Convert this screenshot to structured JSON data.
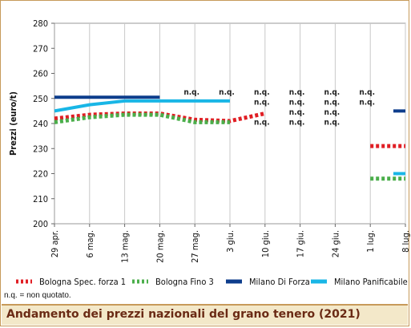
{
  "footer": {
    "title": "Andamento dei prezzi nazionali del grano tenero (2021)"
  },
  "note": "n.q. = non quotato.",
  "legend": [
    {
      "label": "Bologna Spec. forza 1",
      "color": "#e01e24",
      "style": "dotted"
    },
    {
      "label": "Bologna Fino 3",
      "color": "#4aae4a",
      "style": "dotted"
    },
    {
      "label": "Milano Di Forza",
      "color": "#0d3d8c",
      "style": "solid"
    },
    {
      "label": "Milano Panificabile",
      "color": "#19b6e6",
      "style": "solid"
    }
  ],
  "chart_data": {
    "type": "line",
    "ylabel": "Prezzi (euro/t)",
    "xlabel": "",
    "ylim": [
      200,
      280
    ],
    "yticks": [
      200,
      210,
      220,
      230,
      240,
      250,
      260,
      270,
      280
    ],
    "categories": [
      "29 apr.",
      "6 mag.",
      "13 mag.",
      "20 mag.",
      "27 mag.",
      "3 giu.",
      "10 giu.",
      "17 giu.",
      "24 giu.",
      "1 lug.",
      "8 lug."
    ],
    "grid": "vertical",
    "series": [
      {
        "name": "Bologna Spec. forza 1",
        "color": "#e01e24",
        "style": "dotted",
        "values": [
          242,
          243.5,
          244,
          244,
          241.5,
          241,
          244,
          null,
          null,
          231,
          231
        ]
      },
      {
        "name": "Bologna Fino 3",
        "color": "#4aae4a",
        "style": "dotted",
        "values": [
          240.5,
          242.5,
          243.5,
          243.5,
          240.5,
          240.5,
          null,
          null,
          null,
          218,
          218
        ]
      },
      {
        "name": "Milano Di Forza",
        "color": "#0d3d8c",
        "style": "solid",
        "values": [
          250.5,
          250.5,
          250.5,
          250.5,
          null,
          null,
          null,
          null,
          null,
          null,
          245
        ]
      },
      {
        "name": "Milano Panificabile",
        "color": "#19b6e6",
        "style": "solid",
        "values": [
          245,
          247.5,
          249,
          249,
          249,
          249,
          null,
          null,
          null,
          null,
          220
        ]
      }
    ],
    "annotations": [
      {
        "text": "n.q.",
        "x": "27 mag.",
        "y": 251.5
      },
      {
        "text": "n.q.",
        "x": "3 giu.",
        "y": 251.5
      },
      {
        "text": "n.q.",
        "x": "10 giu.",
        "y": 251.5
      },
      {
        "text": "n.q.",
        "x": "10 giu.",
        "y": 247.5
      },
      {
        "text": "n.q.",
        "x": "10 giu.",
        "y": 239.5
      },
      {
        "text": "n.q.",
        "x": "17 giu.",
        "y": 251.5
      },
      {
        "text": "n.q.",
        "x": "17 giu.",
        "y": 247.5
      },
      {
        "text": "n.q.",
        "x": "17 giu.",
        "y": 243.5
      },
      {
        "text": "n.q.",
        "x": "17 giu.",
        "y": 239.5
      },
      {
        "text": "n.q.",
        "x": "24 giu.",
        "y": 251.5
      },
      {
        "text": "n.q.",
        "x": "24 giu.",
        "y": 247.5
      },
      {
        "text": "n.q.",
        "x": "24 giu.",
        "y": 243.5
      },
      {
        "text": "n.q.",
        "x": "24 giu.",
        "y": 239.5
      },
      {
        "text": "n.q.",
        "x": "1 lug.",
        "y": 251.5
      },
      {
        "text": "n.q.",
        "x": "1 lug.",
        "y": 247.5
      }
    ]
  }
}
